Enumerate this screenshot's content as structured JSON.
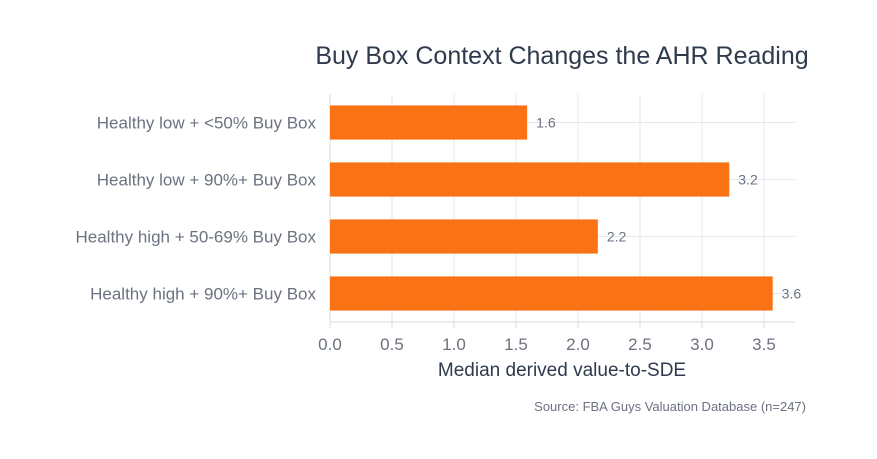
{
  "chart_data": {
    "type": "bar",
    "orientation": "horizontal",
    "title": "Buy Box Context Changes the AHR Reading",
    "xlabel": "Median derived value-to-SDE",
    "ylabel": "",
    "categories": [
      "Healthy low + <50% Buy Box",
      "Healthy low + 90%+ Buy Box",
      "Healthy high + 50-69% Buy Box",
      "Healthy high + 90%+ Buy Box"
    ],
    "values": [
      1.59,
      3.22,
      2.16,
      3.57
    ],
    "data_labels": [
      "1.6",
      "3.2",
      "2.2",
      "3.6"
    ],
    "xlim": [
      0,
      3.75
    ],
    "xticks": [
      0,
      0.5,
      1,
      1.5,
      2,
      2.5,
      3,
      3.5
    ],
    "xtick_labels": [
      "0.0",
      "0.5",
      "1.0",
      "1.5",
      "2.0",
      "2.5",
      "3.0",
      "3.5"
    ],
    "grid": true,
    "bar_color": "#f97316",
    "source": "Source: FBA Guys Valuation Database (n=247)"
  }
}
